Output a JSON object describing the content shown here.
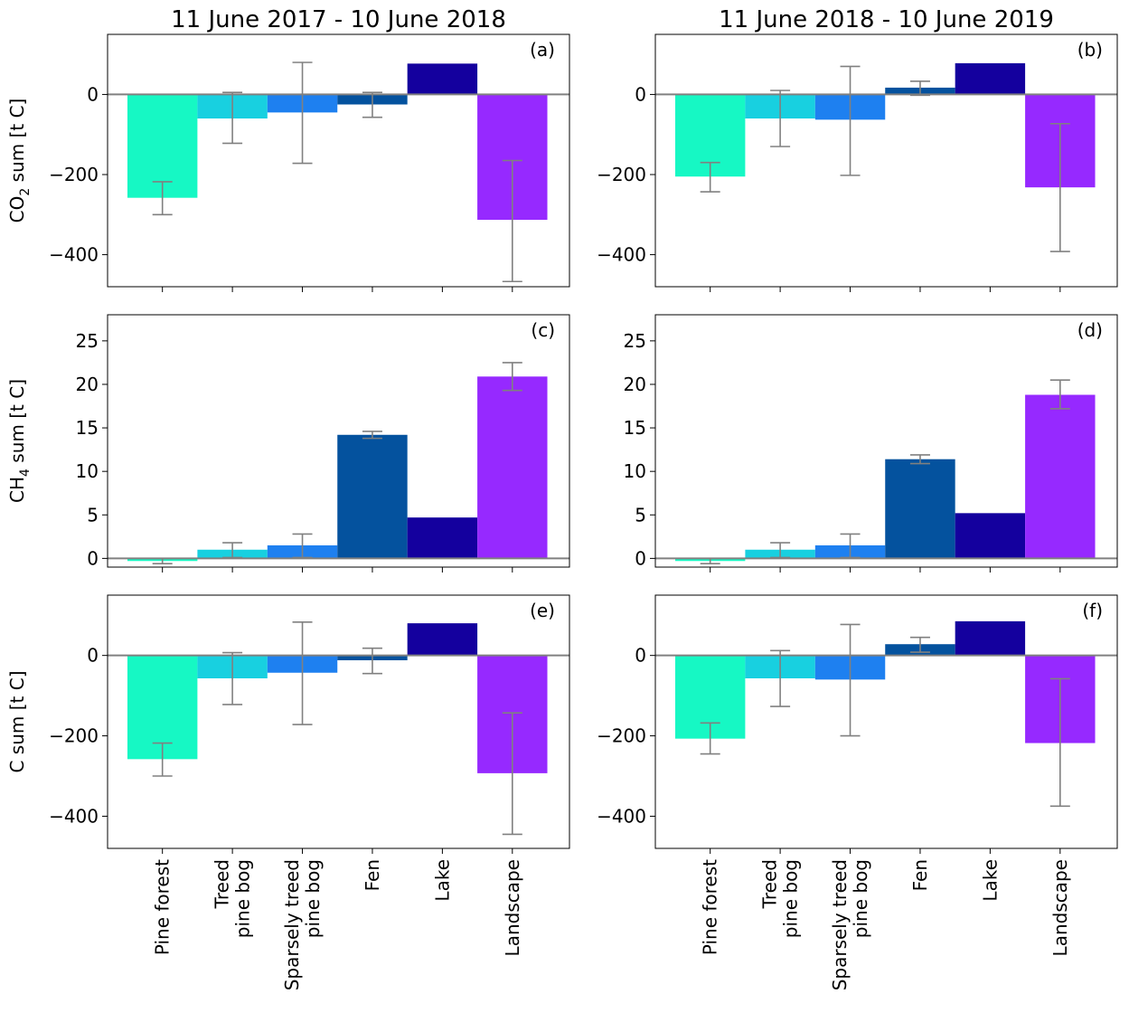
{
  "chart_data": {
    "type": "bar",
    "column_titles": [
      "11 June 2017 - 10 June 2018",
      "11 June 2018 - 10 June 2019"
    ],
    "row_ylabels": [
      {
        "prefix": "CO",
        "subscript": "2",
        "suffix": " sum [t C]"
      },
      {
        "prefix": "CH",
        "subscript": "4",
        "suffix": " sum [t C]"
      },
      {
        "prefix": "C sum [t C]",
        "subscript": "",
        "suffix": ""
      }
    ],
    "categories": [
      {
        "name": "Pine forest",
        "lines": [
          "Pine forest"
        ]
      },
      {
        "name": "Treed pine bog",
        "lines": [
          "Treed",
          "pine bog"
        ]
      },
      {
        "name": "Sparsely treed pine bog",
        "lines": [
          "Sparsely treed",
          "pine bog"
        ]
      },
      {
        "name": "Fen",
        "lines": [
          "Fen"
        ]
      },
      {
        "name": "Lake",
        "lines": [
          "Lake"
        ]
      },
      {
        "name": "Landscape",
        "lines": [
          "Landscape"
        ]
      }
    ],
    "bar_colors": [
      "#16f8c4",
      "#18d0e0",
      "#1e80f0",
      "#04529e",
      "#14009e",
      "#9629ff"
    ],
    "errorbar_color": "#808080",
    "zero_line_color": "#808080",
    "panels": [
      {
        "id": "(a)",
        "row": 0,
        "col": 0,
        "ylim": [
          -480,
          150
        ],
        "yticks": [
          -400,
          -200,
          0
        ],
        "values": [
          -258,
          -60,
          -45,
          -25,
          77,
          -313
        ],
        "err_low": [
          -300,
          -122,
          -172,
          -57,
          null,
          -467
        ],
        "err_high": [
          -218,
          5,
          80,
          5,
          null,
          -165
        ]
      },
      {
        "id": "(b)",
        "row": 0,
        "col": 1,
        "ylim": [
          -480,
          150
        ],
        "yticks": [
          -400,
          -200,
          0
        ],
        "values": [
          -205,
          -60,
          -63,
          17,
          78,
          -232
        ],
        "err_low": [
          -243,
          -130,
          -202,
          -2,
          null,
          -392
        ],
        "err_high": [
          -170,
          10,
          70,
          33,
          null,
          -73
        ]
      },
      {
        "id": "(c)",
        "row": 1,
        "col": 0,
        "ylim": [
          -1,
          28
        ],
        "yticks": [
          0,
          5,
          10,
          15,
          20,
          25
        ],
        "values": [
          -0.3,
          1.0,
          1.5,
          14.2,
          4.7,
          20.9
        ],
        "err_low": [
          -0.6,
          0.1,
          0.1,
          13.8,
          null,
          19.3
        ],
        "err_high": [
          0.0,
          1.8,
          2.8,
          14.6,
          null,
          22.5
        ]
      },
      {
        "id": "(d)",
        "row": 1,
        "col": 1,
        "ylim": [
          -1,
          28
        ],
        "yticks": [
          0,
          5,
          10,
          15,
          20,
          25
        ],
        "values": [
          -0.3,
          1.0,
          1.5,
          11.4,
          5.2,
          18.8
        ],
        "err_low": [
          -0.6,
          0.1,
          0.1,
          10.9,
          null,
          17.2
        ],
        "err_high": [
          0.0,
          1.8,
          2.8,
          11.9,
          null,
          20.5
        ]
      },
      {
        "id": "(e)",
        "row": 2,
        "col": 0,
        "ylim": [
          -480,
          150
        ],
        "yticks": [
          -400,
          -200,
          0
        ],
        "values": [
          -258,
          -57,
          -43,
          -12,
          80,
          -293
        ],
        "err_low": [
          -300,
          -122,
          -172,
          -45,
          null,
          -445
        ],
        "err_high": [
          -218,
          7,
          83,
          18,
          null,
          -143
        ]
      },
      {
        "id": "(f)",
        "row": 2,
        "col": 1,
        "ylim": [
          -480,
          150
        ],
        "yticks": [
          -400,
          -200,
          0
        ],
        "values": [
          -207,
          -57,
          -60,
          28,
          85,
          -218
        ],
        "err_low": [
          -245,
          -127,
          -200,
          8,
          null,
          -375
        ],
        "err_high": [
          -168,
          12,
          77,
          45,
          null,
          -58
        ]
      }
    ]
  }
}
